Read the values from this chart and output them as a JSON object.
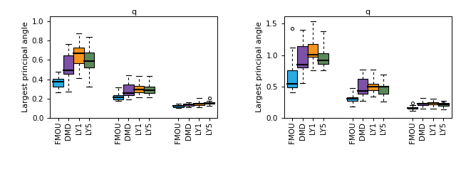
{
  "title_left": "q",
  "title_right": "q",
  "ylabel": "Largest principal angle",
  "colors": {
    "FMOU": "#29ABE2",
    "DMD": "#7B52A6",
    "LY1": "#F7941D",
    "LY5": "#5B8A5A"
  },
  "left": {
    "groups": [
      {
        "boxes": [
          {
            "label": "FMOU",
            "whislo": 0.265,
            "q1": 0.325,
            "med": 0.375,
            "q3": 0.405,
            "whishi": 0.48,
            "fliers": []
          },
          {
            "label": "DMD",
            "whislo": 0.275,
            "q1": 0.455,
            "med": 0.495,
            "q3": 0.645,
            "whishi": 0.76,
            "fliers": []
          },
          {
            "label": "LY1",
            "whislo": 0.415,
            "q1": 0.565,
            "med": 0.665,
            "q3": 0.725,
            "whishi": 0.875,
            "fliers": []
          },
          {
            "label": "LY5",
            "whislo": 0.325,
            "q1": 0.525,
            "med": 0.585,
            "q3": 0.675,
            "whishi": 0.835,
            "fliers": []
          }
        ]
      },
      {
        "boxes": [
          {
            "label": "FMOU",
            "whislo": 0.18,
            "q1": 0.195,
            "med": 0.215,
            "q3": 0.235,
            "whishi": 0.315,
            "fliers": []
          },
          {
            "label": "DMD",
            "whislo": 0.19,
            "q1": 0.235,
            "med": 0.255,
            "q3": 0.345,
            "whishi": 0.44,
            "fliers": []
          },
          {
            "label": "LY1",
            "whislo": 0.215,
            "q1": 0.265,
            "med": 0.295,
            "q3": 0.33,
            "whishi": 0.435,
            "fliers": []
          },
          {
            "label": "LY5",
            "whislo": 0.215,
            "q1": 0.255,
            "med": 0.285,
            "q3": 0.325,
            "whishi": 0.435,
            "fliers": []
          }
        ]
      },
      {
        "boxes": [
          {
            "label": "FMOU",
            "whislo": 0.105,
            "q1": 0.115,
            "med": 0.125,
            "q3": 0.135,
            "whishi": 0.145,
            "fliers": []
          },
          {
            "label": "DMD",
            "whislo": 0.115,
            "q1": 0.128,
            "med": 0.14,
            "q3": 0.15,
            "whishi": 0.163,
            "fliers": []
          },
          {
            "label": "LY1",
            "whislo": 0.115,
            "q1": 0.135,
            "med": 0.148,
            "q3": 0.158,
            "whishi": 0.21,
            "fliers": []
          },
          {
            "label": "LY5",
            "whislo": 0.13,
            "q1": 0.145,
            "med": 0.155,
            "q3": 0.163,
            "whishi": 0.175,
            "fliers": [
              0.21
            ]
          }
        ]
      }
    ],
    "ylim": [
      0.0,
      1.05
    ],
    "yticks": [
      0.0,
      0.2,
      0.4,
      0.6,
      0.8,
      1.0
    ]
  },
  "right": {
    "groups": [
      {
        "boxes": [
          {
            "label": "FMOU",
            "whislo": 0.41,
            "q1": 0.485,
            "med": 0.545,
            "q3": 0.755,
            "whishi": 1.12,
            "fliers": [
              1.42
            ]
          },
          {
            "label": "DMD",
            "whislo": 0.555,
            "q1": 0.805,
            "med": 0.845,
            "q3": 1.14,
            "whishi": 1.405,
            "fliers": []
          },
          {
            "label": "LY1",
            "whislo": 0.755,
            "q1": 0.975,
            "med": 1.005,
            "q3": 1.175,
            "whishi": 1.535,
            "fliers": []
          },
          {
            "label": "LY5",
            "whislo": 0.76,
            "q1": 0.865,
            "med": 0.915,
            "q3": 1.03,
            "whishi": 1.38,
            "fliers": []
          }
        ]
      },
      {
        "boxes": [
          {
            "label": "FMOU",
            "whislo": 0.18,
            "q1": 0.27,
            "med": 0.305,
            "q3": 0.335,
            "whishi": 0.48,
            "fliers": []
          },
          {
            "label": "DMD",
            "whislo": 0.275,
            "q1": 0.39,
            "med": 0.435,
            "q3": 0.625,
            "whishi": 0.77,
            "fliers": []
          },
          {
            "label": "LY1",
            "whislo": 0.345,
            "q1": 0.44,
            "med": 0.495,
            "q3": 0.545,
            "whishi": 0.77,
            "fliers": []
          },
          {
            "label": "LY5",
            "whislo": 0.265,
            "q1": 0.39,
            "med": 0.495,
            "q3": 0.51,
            "whishi": 0.69,
            "fliers": []
          }
        ]
      },
      {
        "boxes": [
          {
            "label": "FMOU",
            "whislo": 0.115,
            "q1": 0.155,
            "med": 0.165,
            "q3": 0.175,
            "whishi": 0.205,
            "fliers": [
              0.245
            ]
          },
          {
            "label": "DMD",
            "whislo": 0.155,
            "q1": 0.21,
            "med": 0.225,
            "q3": 0.245,
            "whishi": 0.32,
            "fliers": []
          },
          {
            "label": "LY1",
            "whislo": 0.155,
            "q1": 0.215,
            "med": 0.235,
            "q3": 0.255,
            "whishi": 0.305,
            "fliers": []
          },
          {
            "label": "LY5",
            "whislo": 0.14,
            "q1": 0.195,
            "med": 0.215,
            "q3": 0.235,
            "whishi": 0.275,
            "fliers": [
              0.245
            ]
          }
        ]
      }
    ],
    "ylim": [
      0.0,
      1.62
    ],
    "yticks": [
      0.0,
      0.5,
      1.0,
      1.5
    ]
  }
}
